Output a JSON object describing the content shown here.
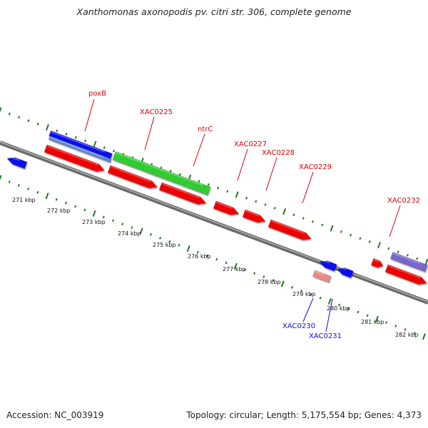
{
  "title": "Xanthomonas axonopodis pv. citri str. 306, complete genome",
  "footer": {
    "accession": "Accession: NC_003919",
    "summary": "Topology: circular; Length: 5,175,554 bp; Genes: 4,373"
  },
  "colors": {
    "forward_cds": "#ee0000",
    "reverse_cds": "#1111ee",
    "rna_gene": "#33cc33",
    "pseudo_forward": "#ee8888",
    "misc_feature": "#7766cc",
    "backbone": "#7a7a7a",
    "tick_marks": "#1c7a1c",
    "forward_label": "#dd0000",
    "reverse_label": "#1111cc"
  },
  "scale_ticks": [
    "271 kbp",
    "272 kbp",
    "273 kbp",
    "274 kbp",
    "275 kbp",
    "276 kbp",
    "277 kbp",
    "278 kbp",
    "279 kbp",
    "280 kbp",
    "281 kbp",
    "282 kbp"
  ],
  "gene_labels": [
    {
      "text": "poxB",
      "strand": "forward"
    },
    {
      "text": "XAC0225",
      "strand": "forward"
    },
    {
      "text": "ntrC",
      "strand": "forward"
    },
    {
      "text": "XAC0227",
      "strand": "forward"
    },
    {
      "text": "XAC0228",
      "strand": "forward"
    },
    {
      "text": "XAC0229",
      "strand": "forward"
    },
    {
      "text": "XAC0232",
      "strand": "forward"
    },
    {
      "text": "XAC0230",
      "strand": "reverse"
    },
    {
      "text": "XAC0231",
      "strand": "reverse"
    }
  ]
}
